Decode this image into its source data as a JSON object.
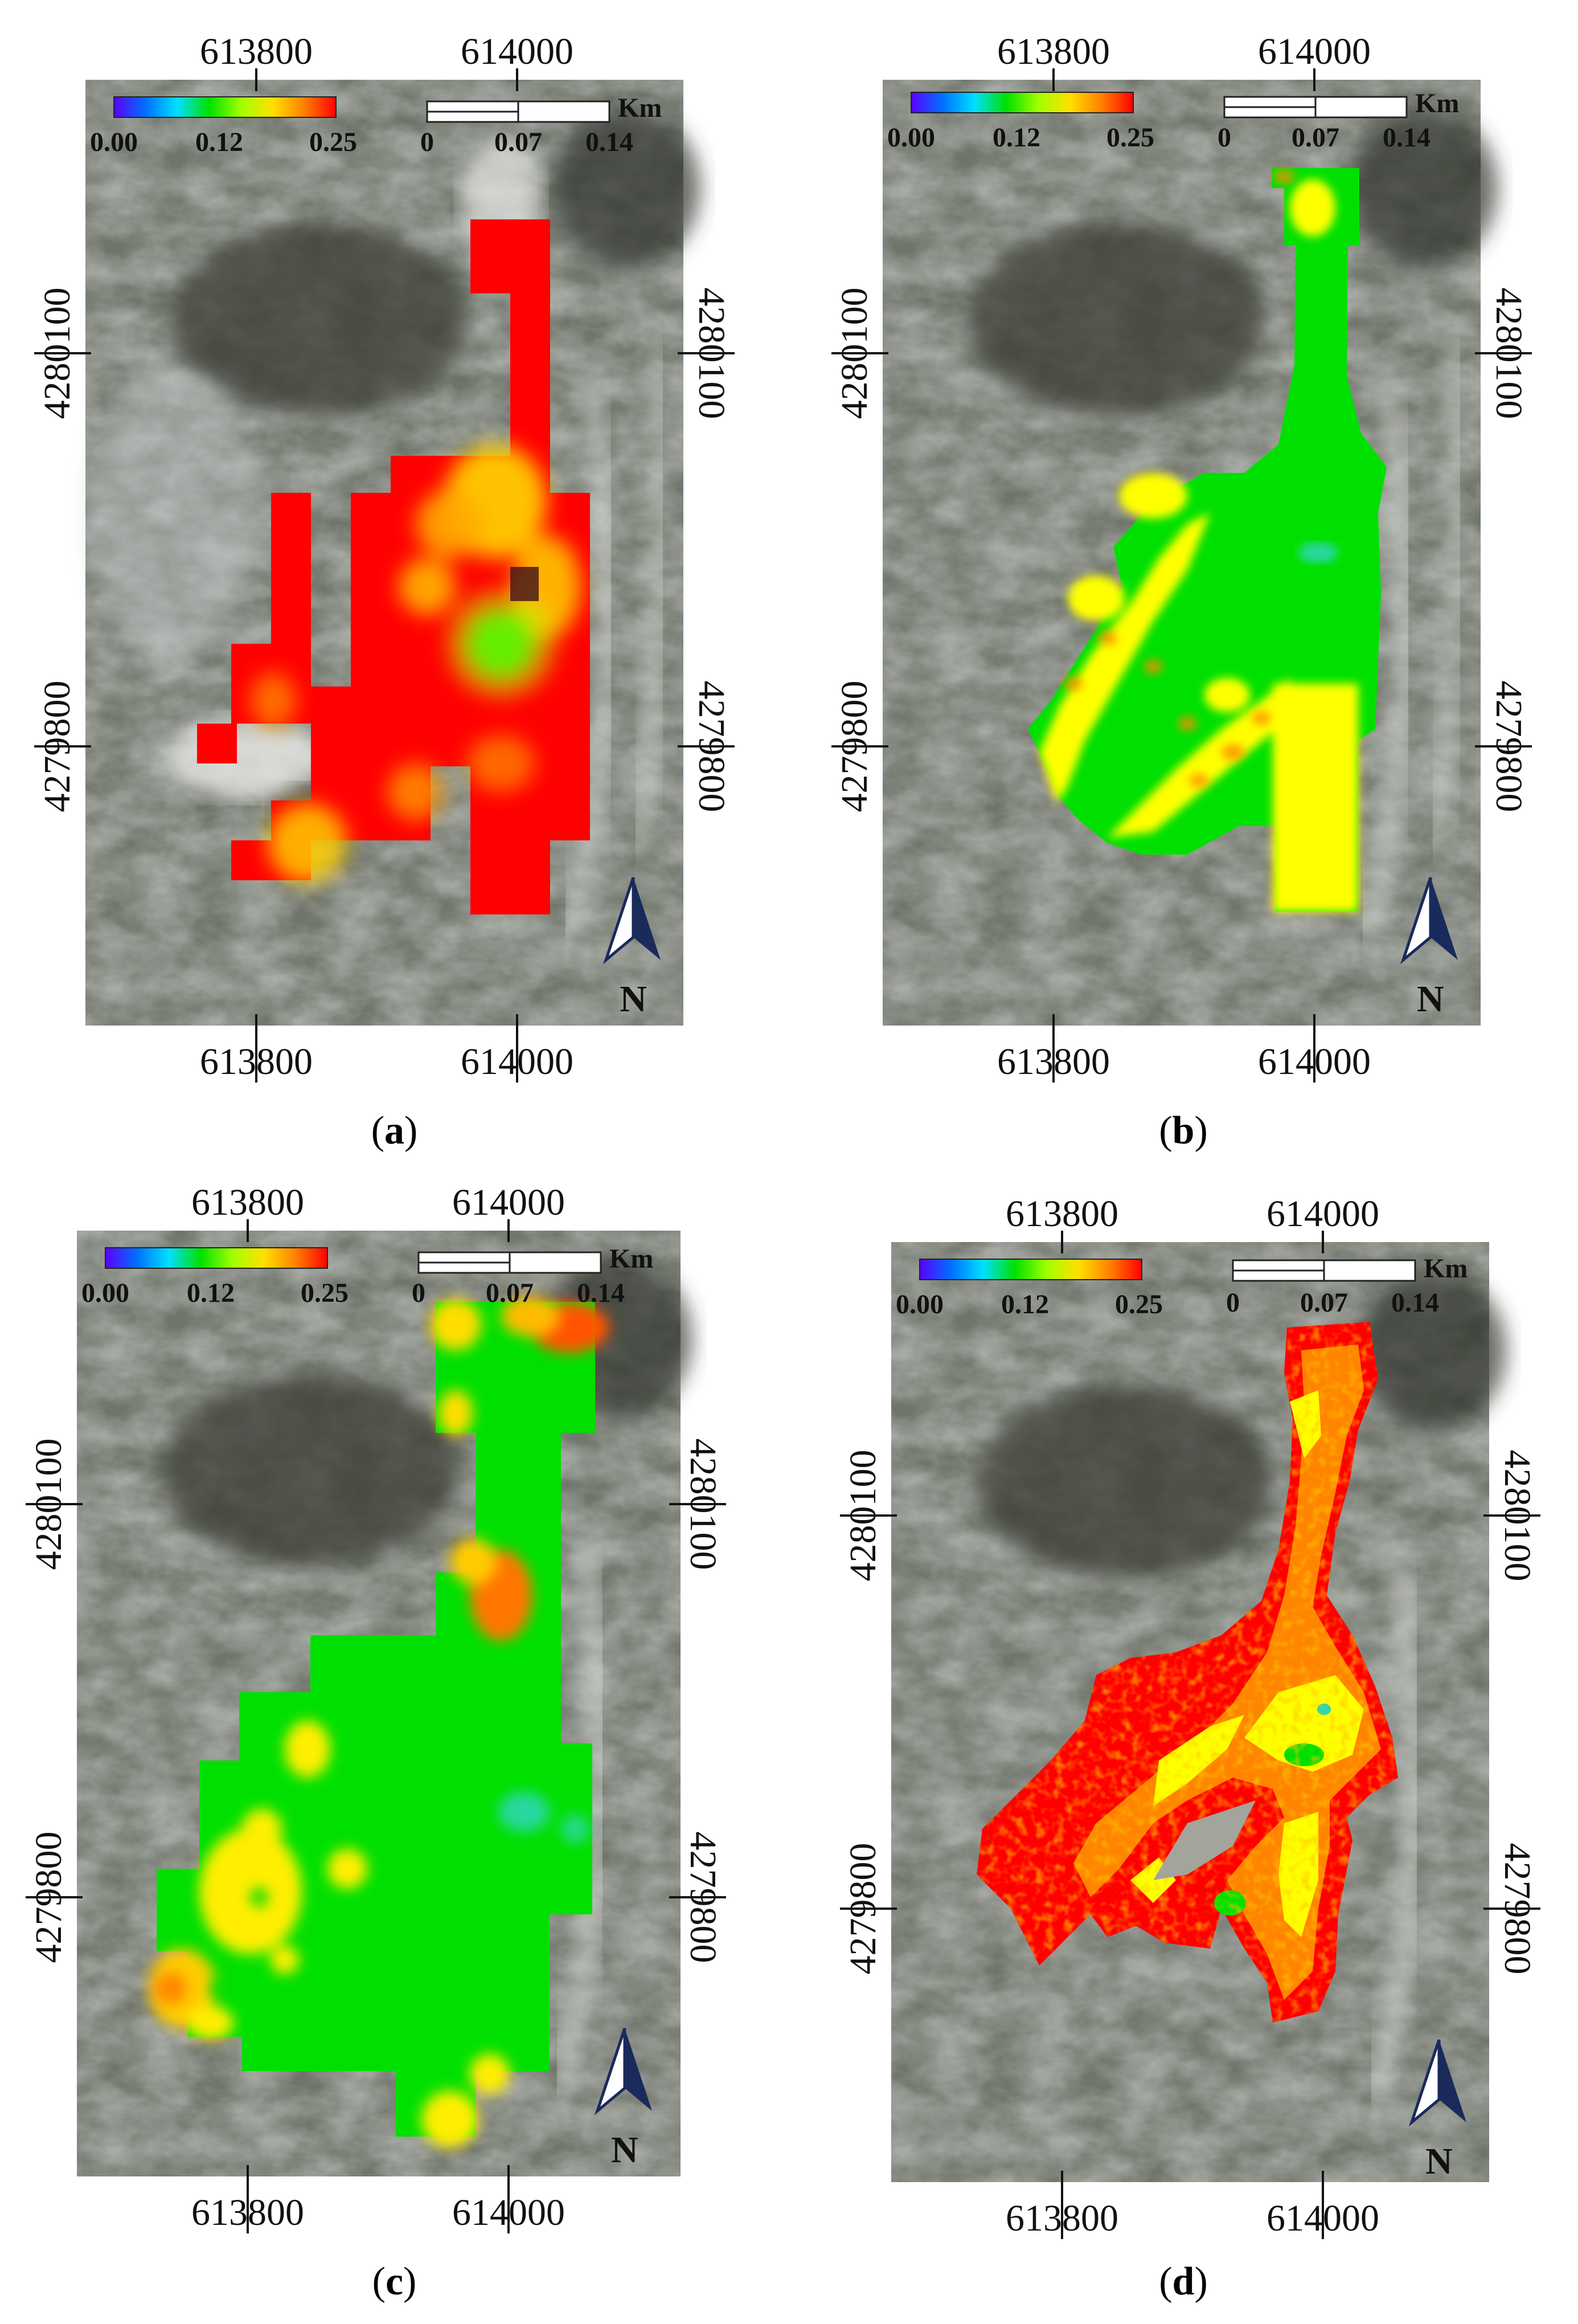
{
  "colors": {
    "red": "#ff0000",
    "orange": "#ff8c00",
    "yellow": "#ffff00",
    "green": "#00e000",
    "cyan": "#2fd6b0",
    "north_arrow": "#1a2a5a",
    "background_base": "#6b6f67"
  },
  "common": {
    "x_ticks": [
      "613800",
      "614000"
    ],
    "y_ticks": [
      "4280100",
      "4279800"
    ],
    "legend_labels": [
      "0.00",
      "0.12",
      "0.25"
    ],
    "legend_gradient": [
      "#5a00ff",
      "#0070ff",
      "#00e0ff",
      "#00e000",
      "#a0ff00",
      "#ffe000",
      "#ff8000",
      "#ff0000"
    ],
    "scale_labels": [
      "0",
      "0.07",
      "0.14"
    ],
    "scale_unit": "Km",
    "north_label": "N"
  },
  "panels": [
    {
      "id": "a",
      "caption_letter": "a"
    },
    {
      "id": "b",
      "caption_letter": "b"
    },
    {
      "id": "c",
      "caption_letter": "c"
    },
    {
      "id": "d",
      "caption_letter": "d"
    }
  ]
}
